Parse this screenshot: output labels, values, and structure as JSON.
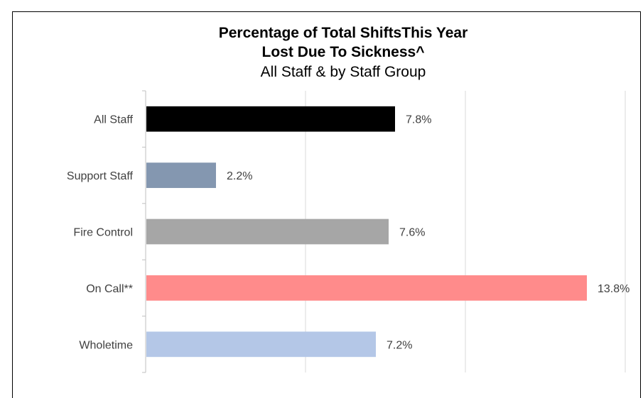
{
  "chart_data": {
    "type": "bar",
    "orientation": "horizontal",
    "title": [
      "Percentage of Total ShiftsThis Year",
      "Lost Due To Sickness^"
    ],
    "subtitle": "All Staff & by Staff Group",
    "categories": [
      "All Staff",
      "Support Staff",
      "Fire Control",
      "On Call**",
      "Wholetime"
    ],
    "values": [
      7.8,
      2.2,
      7.6,
      13.8,
      7.2
    ],
    "data_labels": [
      "7.8%",
      "2.2%",
      "7.6%",
      "13.8%",
      "7.2%"
    ],
    "colors": [
      "#000000",
      "#8497B0",
      "#A6A6A6",
      "#FF8B8B",
      "#B4C7E7"
    ],
    "xlim": [
      0,
      15
    ],
    "grid": true,
    "xlabel": "",
    "ylabel": ""
  }
}
